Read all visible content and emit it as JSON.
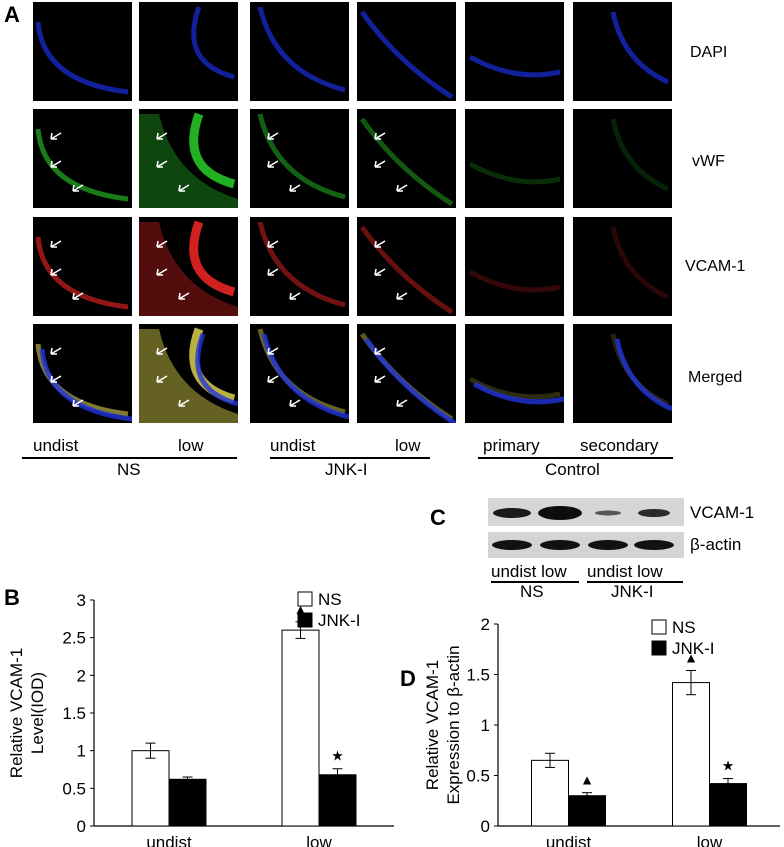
{
  "panel_A": {
    "letter": "A",
    "row_labels": [
      "DAPI",
      "vWF",
      "VCAM-1",
      "Merged"
    ],
    "col_labels": [
      "undist",
      "low",
      "undist",
      "low",
      "primary",
      "secondary"
    ],
    "groups": [
      "NS",
      "JNK-I",
      "Control"
    ],
    "colors": {
      "DAPI": "#1a2bd0",
      "vWF": "#22b022",
      "VCAM-1": "#d02020",
      "Merged": "#b8b040"
    }
  },
  "panel_C": {
    "letter": "C",
    "bands": [
      "VCAM-1",
      "β-actin"
    ],
    "lanes": [
      "undist low",
      "undist low"
    ],
    "groups": [
      "NS",
      "JNK-I"
    ]
  },
  "chart_data": [
    {
      "panel": "B",
      "type": "bar",
      "categories": [
        "undist",
        "low"
      ],
      "ylabel": "Relative VCAM-1 Level(IOD)",
      "ylim": [
        0,
        3
      ],
      "yticks": [
        "0",
        "0.5",
        "1",
        "1.5",
        "2",
        "2.5",
        "3"
      ],
      "legend": "top-right",
      "series": [
        {
          "name": "NS",
          "values": [
            1.0,
            2.6
          ],
          "errors": [
            0.1,
            0.11
          ],
          "color": "#ffffff"
        },
        {
          "name": "JNK-I",
          "values": [
            0.62,
            0.68
          ],
          "errors": [
            0.03,
            0.08
          ],
          "color": "#000000"
        }
      ],
      "markers": {
        "triangle": "▲",
        "star": "★"
      }
    },
    {
      "panel": "D",
      "type": "bar",
      "categories": [
        "undist",
        "low"
      ],
      "ylabel": "Relative VCAM-1 Expression to β-actin",
      "ylim": [
        0,
        2
      ],
      "yticks": [
        "0",
        "0.5",
        "1",
        "1.5",
        "2"
      ],
      "legend": "top-right",
      "series": [
        {
          "name": "NS",
          "values": [
            0.65,
            1.42
          ],
          "errors": [
            0.07,
            0.12
          ],
          "color": "#ffffff"
        },
        {
          "name": "JNK-I",
          "values": [
            0.3,
            0.42
          ],
          "errors": [
            0.03,
            0.05
          ],
          "color": "#000000"
        }
      ],
      "markers": {
        "triangle": "▲",
        "star": "★"
      }
    }
  ]
}
